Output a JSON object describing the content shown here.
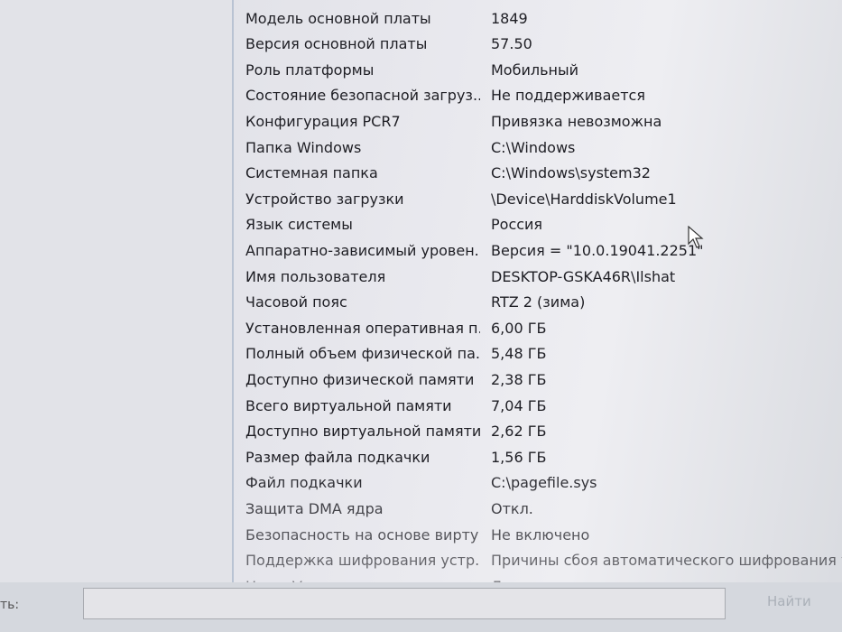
{
  "rows": [
    {
      "k": "Модель основной платы",
      "v": "1849"
    },
    {
      "k": "Версия основной платы",
      "v": "57.50"
    },
    {
      "k": "Роль платформы",
      "v": "Мобильный"
    },
    {
      "k": "Состояние безопасной загруз...",
      "v": "Не поддерживается"
    },
    {
      "k": "Конфигурация PCR7",
      "v": "Привязка невозможна"
    },
    {
      "k": "Папка Windows",
      "v": "C:\\Windows"
    },
    {
      "k": "Системная папка",
      "v": "C:\\Windows\\system32"
    },
    {
      "k": "Устройство загрузки",
      "v": "\\Device\\HarddiskVolume1"
    },
    {
      "k": "Язык системы",
      "v": "Россия"
    },
    {
      "k": "Аппаратно-зависимый уровен...",
      "v": "Версия = \"10.0.19041.2251\""
    },
    {
      "k": "Имя пользователя",
      "v": "DESKTOP-GSKA46R\\Ilshat"
    },
    {
      "k": "Часовой пояс",
      "v": "RTZ 2 (зима)"
    },
    {
      "k": "Установленная оперативная п...",
      "v": "6,00 ГБ"
    },
    {
      "k": "Полный объем физической па...",
      "v": "5,48 ГБ"
    },
    {
      "k": "Доступно физической памяти",
      "v": "2,38 ГБ"
    },
    {
      "k": "Всего виртуальной памяти",
      "v": "7,04 ГБ"
    },
    {
      "k": "Доступно виртуальной памяти",
      "v": "2,62 ГБ"
    },
    {
      "k": "Размер файла подкачки",
      "v": "1,56 ГБ"
    },
    {
      "k": "Файл подкачки",
      "v": "C:\\pagefile.sys"
    },
    {
      "k": "Защита DMA ядра",
      "v": "Откл."
    },
    {
      "k": "Безопасность на основе вирту...",
      "v": "Не включено"
    },
    {
      "k": "Поддержка шифрования устр...",
      "v": "Причины сбоя автоматического шифрования устро"
    },
    {
      "k": "Hyper-V — расширения режи...",
      "v": "Да"
    }
  ],
  "find": {
    "label": "ть:",
    "value": "",
    "button": "Найти"
  }
}
